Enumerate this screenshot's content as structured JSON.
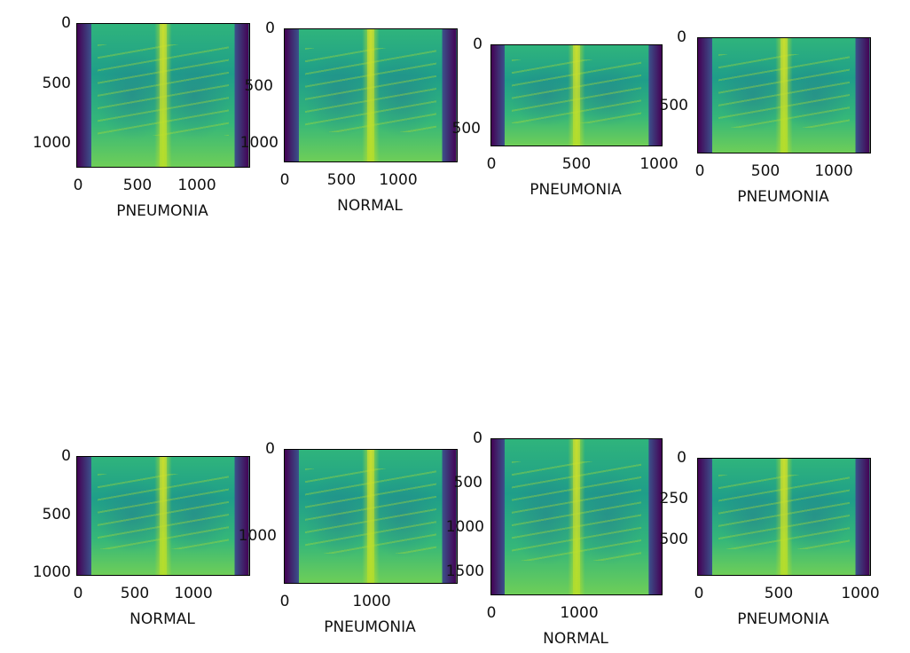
{
  "colors": {
    "background": "#ffffff",
    "colormap": "viridis"
  },
  "panels": [
    {
      "label": "PNEUMONIA",
      "yticks": [
        "0",
        "500",
        "1000"
      ],
      "xticks": [
        "0",
        "500",
        "1000"
      ]
    },
    {
      "label": "NORMAL",
      "yticks": [
        "0",
        "500",
        "1000"
      ],
      "xticks": [
        "0",
        "500",
        "1000"
      ]
    },
    {
      "label": "PNEUMONIA",
      "yticks": [
        "0",
        "500"
      ],
      "xticks": [
        "0",
        "500",
        "1000"
      ]
    },
    {
      "label": "PNEUMONIA",
      "yticks": [
        "0",
        "500"
      ],
      "xticks": [
        "0",
        "500",
        "1000"
      ]
    },
    {
      "label": "NORMAL",
      "yticks": [
        "0",
        "500",
        "1000"
      ],
      "xticks": [
        "0",
        "500",
        "1000"
      ]
    },
    {
      "label": "PNEUMONIA",
      "yticks": [
        "0",
        "1000"
      ],
      "xticks": [
        "0",
        "1000"
      ]
    },
    {
      "label": "NORMAL",
      "yticks": [
        "0",
        "500",
        "1000",
        "1500"
      ],
      "xticks": [
        "0",
        "1000"
      ]
    },
    {
      "label": "PNEUMONIA",
      "yticks": [
        "0",
        "250",
        "500"
      ],
      "xticks": [
        "0",
        "500",
        "1000"
      ]
    }
  ]
}
